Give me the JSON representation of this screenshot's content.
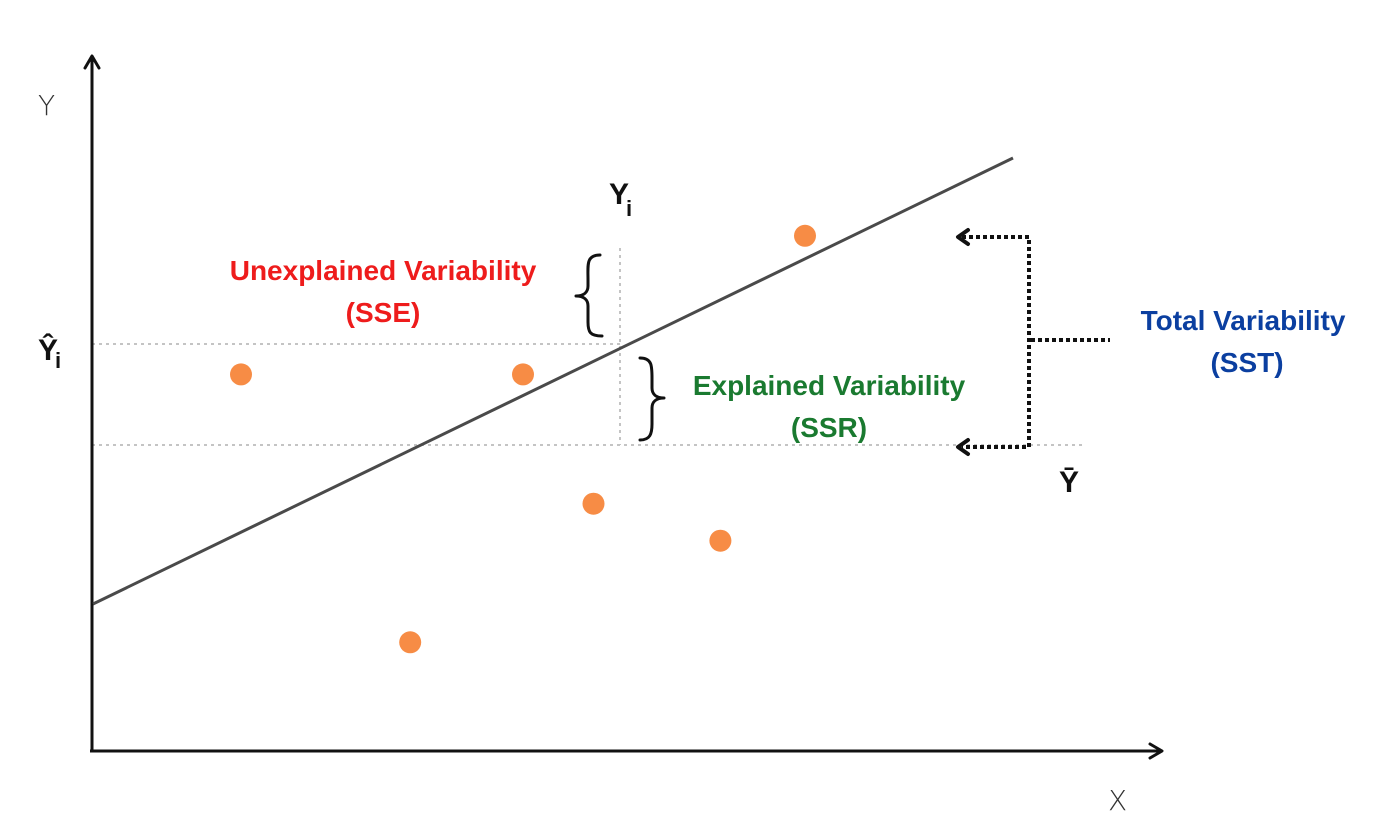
{
  "axes": {
    "x_label": "X",
    "y_label": "Y"
  },
  "symbols": {
    "observed": "Y",
    "observed_sub": "i",
    "predicted": "Ŷ",
    "predicted_sub": "i",
    "mean": "Ȳ"
  },
  "annotations": {
    "sse_title": "Unexplained Variability",
    "sse_abbr": "(SSE)",
    "ssr_title": "Explained Variability",
    "ssr_abbr": "(SSR)",
    "sst_title": "Total Variability",
    "sst_abbr": "(SST)"
  },
  "colors": {
    "sse": "#ee1c1c",
    "ssr": "#1a7a30",
    "sst": "#0b3fa0",
    "point": "#f78c45",
    "regression_line": "#4a4a4a"
  },
  "data_points": [
    {
      "x": 1,
      "y": 3.6
    },
    {
      "x": 2.2,
      "y": 0.7
    },
    {
      "x": 3,
      "y": 3.6
    },
    {
      "x": 3.5,
      "y": 2.2
    },
    {
      "x": 4.4,
      "y": 1.8
    },
    {
      "x": 5,
      "y": 5.1
    }
  ]
}
